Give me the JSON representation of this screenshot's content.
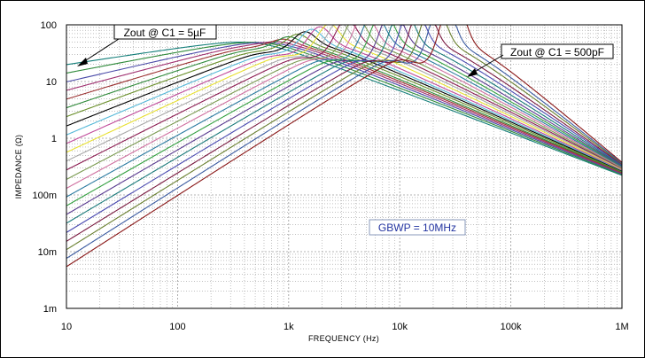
{
  "chart_data": {
    "type": "line",
    "xscale": "log",
    "yscale": "log",
    "xlabel": "FREQUENCY (Hz)",
    "ylabel": "IMPEDANCE (Ω)",
    "xlim": [
      10,
      1000000
    ],
    "ylim": [
      0.001,
      100
    ],
    "x_ticks": [
      "10",
      "100",
      "1k",
      "10k",
      "100k",
      "1M"
    ],
    "y_ticks": [
      "100",
      "10",
      "1",
      "100m",
      "10m",
      "1m"
    ],
    "grid": true,
    "annotations": [
      {
        "text": "Zout @ C1 = 5µF",
        "x": 10,
        "y": 14
      },
      {
        "text": "Zout @ C1 = 500pF",
        "x": 30000,
        "y": 50
      }
    ],
    "gbwp_label": "GBWP = 10MHz",
    "series": [
      {
        "color": "#147f7a",
        "values": [
          [
            10,
            14.5
          ],
          [
            500,
            48
          ],
          [
            1000000,
            0.16
          ]
        ]
      },
      {
        "color": "#2f8a3a",
        "values": [
          [
            10,
            10
          ],
          [
            600,
            48
          ],
          [
            1000000,
            0.16
          ]
        ]
      },
      {
        "color": "#4a4aa8",
        "values": [
          [
            10,
            6.8
          ],
          [
            700,
            48
          ],
          [
            1000000,
            0.16
          ]
        ]
      },
      {
        "color": "#a03070",
        "values": [
          [
            10,
            4.7
          ],
          [
            800,
            48
          ],
          [
            1000000,
            0.16
          ]
        ]
      },
      {
        "color": "#9a3030",
        "values": [
          [
            10,
            3.2
          ],
          [
            900,
            48
          ],
          [
            1000000,
            0.16
          ]
        ]
      },
      {
        "color": "#2f8a3a",
        "values": [
          [
            10,
            2.2
          ],
          [
            1000,
            48
          ],
          [
            1000000,
            0.16
          ]
        ]
      },
      {
        "color": "#6a8f2a",
        "values": [
          [
            10,
            1.5
          ],
          [
            1200,
            48
          ],
          [
            1000000,
            0.16
          ]
        ]
      },
      {
        "color": "#000000",
        "values": [
          [
            10,
            1.0
          ],
          [
            1400,
            48
          ],
          [
            1000000,
            0.16
          ]
        ]
      },
      {
        "color": "#55b8d8",
        "values": [
          [
            10,
            0.68
          ],
          [
            1600,
            48
          ],
          [
            1000000,
            0.16
          ]
        ]
      },
      {
        "color": "#c04a9a",
        "values": [
          [
            10,
            0.47
          ],
          [
            1900,
            48
          ],
          [
            1000000,
            0.16
          ]
        ]
      },
      {
        "color": "#e8e030",
        "values": [
          [
            10,
            0.32
          ],
          [
            2300,
            49
          ],
          [
            1000000,
            0.16
          ]
        ]
      },
      {
        "color": "#a8a8a8",
        "values": [
          [
            10,
            0.22
          ],
          [
            2800,
            49
          ],
          [
            1000000,
            0.16
          ]
        ]
      },
      {
        "color": "#8a1a50",
        "values": [
          [
            10,
            0.15
          ],
          [
            3300,
            49
          ],
          [
            1000000,
            0.16
          ]
        ]
      },
      {
        "color": "#7a9a50",
        "values": [
          [
            10,
            0.1
          ],
          [
            4000,
            49
          ],
          [
            1000000,
            0.16
          ]
        ]
      },
      {
        "color": "#d070a0",
        "values": [
          [
            10,
            0.068
          ],
          [
            4800,
            50
          ],
          [
            1000000,
            0.16
          ]
        ]
      },
      {
        "color": "#2a7aa0",
        "values": [
          [
            10,
            0.047
          ],
          [
            5800,
            50
          ],
          [
            1000000,
            0.16
          ]
        ]
      },
      {
        "color": "#34a040",
        "values": [
          [
            10,
            0.032
          ],
          [
            7000,
            50
          ],
          [
            1000000,
            0.16
          ]
        ]
      },
      {
        "color": "#5a3a90",
        "values": [
          [
            10,
            0.022
          ],
          [
            8500,
            50
          ],
          [
            1000000,
            0.16
          ]
        ]
      },
      {
        "color": "#1a7a7a",
        "values": [
          [
            10,
            0.015
          ],
          [
            10500,
            51
          ],
          [
            1000000,
            0.16
          ]
        ]
      },
      {
        "color": "#4a4ab0",
        "values": [
          [
            10,
            0.01
          ],
          [
            13000,
            52
          ],
          [
            1000000,
            0.16
          ]
        ]
      },
      {
        "color": "#7a1a40",
        "values": [
          [
            10,
            0.0068
          ],
          [
            16000,
            52
          ],
          [
            1000000,
            0.16
          ]
        ]
      },
      {
        "color": "#6a8030",
        "values": [
          [
            10,
            0.0047
          ],
          [
            20000,
            53
          ],
          [
            1000000,
            0.16
          ]
        ]
      },
      {
        "color": "#3a5aa0",
        "values": [
          [
            10,
            0.0032
          ],
          [
            24000,
            53
          ],
          [
            1000000,
            0.16
          ]
        ]
      },
      {
        "color": "#8a1818",
        "values": [
          [
            10,
            0.0022
          ],
          [
            30000,
            54
          ],
          [
            1000000,
            0.16
          ]
        ]
      }
    ]
  },
  "colors": {
    "grid": "#9a9a9a",
    "axis": "#000000",
    "gbwp": "#2233a0"
  }
}
